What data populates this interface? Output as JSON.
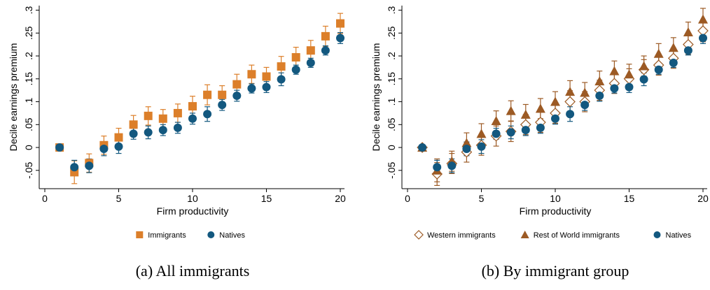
{
  "chart_data": [
    {
      "type": "scatter",
      "caption": "(a) All immigrants",
      "y_label": "Decile earnings premium",
      "x_label": "Firm productivity",
      "x": [
        1,
        2,
        3,
        4,
        5,
        6,
        7,
        8,
        9,
        10,
        11,
        12,
        13,
        14,
        15,
        16,
        17,
        18,
        19,
        20
      ],
      "xlim": [
        0,
        20
      ],
      "xticks": [
        0,
        5,
        10,
        15,
        20
      ],
      "ylim": [
        -0.09,
        0.31
      ],
      "yticks": [
        {
          "value": -0.05,
          "label": "-.05"
        },
        0,
        {
          "value": 0.05,
          "label": ".05"
        },
        {
          "value": 0.1,
          "label": ".1"
        },
        {
          "value": 0.15,
          "label": ".15"
        },
        {
          "value": 0.2,
          "label": ".2"
        },
        {
          "value": 0.25,
          "label": ".25"
        },
        {
          "value": 0.3,
          "label": ".3"
        }
      ],
      "series": [
        {
          "name": "Immigrants",
          "color": "#dc7f2a",
          "marker": "square",
          "values": [
            0,
            -0.054,
            -0.034,
            0.005,
            0.022,
            0.05,
            0.069,
            0.063,
            0.075,
            0.09,
            0.115,
            0.115,
            0.138,
            0.16,
            0.155,
            0.177,
            0.197,
            0.212,
            0.243,
            0.271
          ],
          "errors": [
            0.005,
            0.025,
            0.02,
            0.02,
            0.02,
            0.02,
            0.02,
            0.02,
            0.02,
            0.022,
            0.022,
            0.02,
            0.022,
            0.02,
            0.02,
            0.022,
            0.022,
            0.022,
            0.022,
            0.022
          ]
        },
        {
          "name": "Natives",
          "color": "#13587f",
          "marker": "circle",
          "values": [
            0,
            -0.043,
            -0.04,
            -0.003,
            0.002,
            0.03,
            0.033,
            0.038,
            0.043,
            0.063,
            0.073,
            0.093,
            0.113,
            0.129,
            0.132,
            0.149,
            0.17,
            0.185,
            0.212,
            0.239
          ],
          "errors": [
            0.003,
            0.015,
            0.015,
            0.015,
            0.015,
            0.012,
            0.014,
            0.012,
            0.012,
            0.012,
            0.016,
            0.012,
            0.012,
            0.01,
            0.012,
            0.014,
            0.01,
            0.01,
            0.01,
            0.012
          ]
        }
      ]
    },
    {
      "type": "scatter",
      "caption": "(b) By immigrant group",
      "y_label": "Decile earnings premium",
      "x_label": "Firm productivity",
      "x": [
        1,
        2,
        3,
        4,
        5,
        6,
        7,
        8,
        9,
        10,
        11,
        12,
        13,
        14,
        15,
        16,
        17,
        18,
        19,
        20
      ],
      "xlim": [
        0,
        20
      ],
      "xticks": [
        0,
        5,
        10,
        15,
        20
      ],
      "ylim": [
        -0.09,
        0.31
      ],
      "yticks": [
        {
          "value": -0.05,
          "label": "-.05"
        },
        0,
        {
          "value": 0.05,
          "label": ".05"
        },
        {
          "value": 0.1,
          "label": ".1"
        },
        {
          "value": 0.15,
          "label": ".15"
        },
        {
          "value": 0.2,
          "label": ".2"
        },
        {
          "value": 0.25,
          "label": ".25"
        },
        {
          "value": 0.3,
          "label": ".3"
        }
      ],
      "series": [
        {
          "name": "Western immigrants",
          "color": "#9c5a24",
          "marker": "diamond",
          "values": [
            0,
            -0.058,
            -0.035,
            -0.01,
            0.005,
            0.025,
            0.035,
            0.05,
            0.055,
            0.075,
            0.1,
            0.1,
            0.125,
            0.14,
            0.15,
            0.17,
            0.18,
            0.195,
            0.225,
            0.255
          ],
          "errors": [
            0.003,
            0.025,
            0.022,
            0.022,
            0.022,
            0.022,
            0.022,
            0.022,
            0.022,
            0.022,
            0.024,
            0.022,
            0.022,
            0.022,
            0.022,
            0.022,
            0.022,
            0.022,
            0.022,
            0.024
          ]
        },
        {
          "name": "Rest of World immigrants",
          "color": "#9c5a24",
          "marker": "triangle",
          "values": [
            0,
            -0.05,
            -0.03,
            0.01,
            0.03,
            0.058,
            0.08,
            0.072,
            0.085,
            0.1,
            0.122,
            0.12,
            0.145,
            0.167,
            0.16,
            0.178,
            0.205,
            0.218,
            0.252,
            0.28
          ],
          "errors": [
            0.003,
            0.025,
            0.022,
            0.022,
            0.022,
            0.022,
            0.022,
            0.022,
            0.022,
            0.022,
            0.024,
            0.022,
            0.022,
            0.022,
            0.022,
            0.022,
            0.022,
            0.022,
            0.022,
            0.024
          ]
        },
        {
          "name": "Natives",
          "color": "#13587f",
          "marker": "circle",
          "values": [
            0,
            -0.043,
            -0.04,
            -0.003,
            0.002,
            0.03,
            0.033,
            0.038,
            0.043,
            0.063,
            0.073,
            0.093,
            0.113,
            0.129,
            0.132,
            0.149,
            0.17,
            0.185,
            0.212,
            0.239
          ],
          "errors": [
            0.003,
            0.015,
            0.015,
            0.015,
            0.015,
            0.012,
            0.014,
            0.012,
            0.012,
            0.012,
            0.016,
            0.012,
            0.012,
            0.01,
            0.012,
            0.014,
            0.01,
            0.01,
            0.01,
            0.012
          ]
        }
      ]
    }
  ]
}
